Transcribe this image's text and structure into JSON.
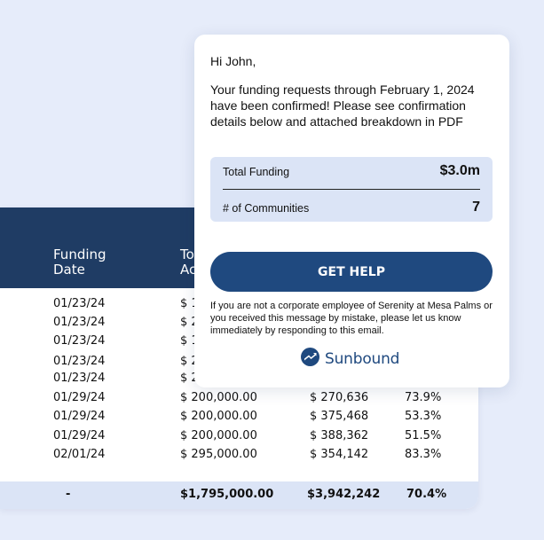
{
  "table": {
    "headers": {
      "funding_date_line1": "Funding",
      "funding_date_line2": "Date",
      "total_amount_line1": "To",
      "total_amount_line2": "Ac"
    },
    "rows": [
      {
        "date": "01/23/24",
        "amount": "$ 1",
        "total": "",
        "pct": ""
      },
      {
        "date": "01/23/24",
        "amount": "$ 2",
        "total": "",
        "pct": ""
      },
      {
        "date": "01/23/24",
        "amount": "$ 1",
        "total": "",
        "pct": ""
      },
      {
        "date": "01/23/24",
        "amount": "$ 2",
        "total": "",
        "pct": ""
      },
      {
        "date": "01/23/24",
        "amount": "$ 2",
        "total": "",
        "pct": ""
      },
      {
        "date": "01/29/24",
        "amount": "$ 200,000.00",
        "total": "$ 270,636",
        "pct": "73.9%"
      },
      {
        "date": "01/29/24",
        "amount": "$ 200,000.00",
        "total": "$ 375,468",
        "pct": "53.3%"
      },
      {
        "date": "01/29/24",
        "amount": "$ 200,000.00",
        "total": "$ 388,362",
        "pct": "51.5%"
      },
      {
        "date": "02/01/24",
        "amount": "$ 295,000.00",
        "total": "$ 354,142",
        "pct": "83.3%"
      }
    ],
    "totals": {
      "date": "-",
      "amount": "$1,795,000.00",
      "total": "$3,942,242",
      "pct": "70.4%"
    }
  },
  "email": {
    "greeting": "Hi John,",
    "message": "Your funding requests through February 1, 2024 have been confirmed! Please see confirmation details below and attached breakdown in PDF",
    "summary": {
      "total_funding_label": "Total Funding",
      "total_funding_value": "$3.0m",
      "communities_label": "# of Communities",
      "communities_value": "7"
    },
    "help_button": "GET HELP",
    "disclaimer": "If you are not a corporate employee of Serenity at Mesa Palms or you received this message by mistake, please let us know immediately by responding to this email.",
    "brand": {
      "name": "Sunbound",
      "icon": "sunbound-logo-icon"
    }
  },
  "colors": {
    "background": "#e6ecfa",
    "table_header": "#1f3c64",
    "accent": "#1f497f",
    "summary_bg": "#dbe4f6"
  }
}
